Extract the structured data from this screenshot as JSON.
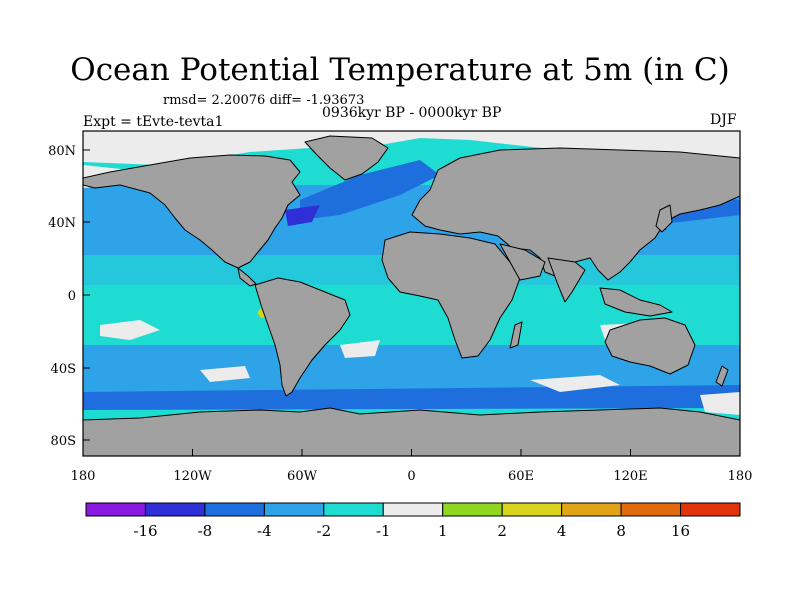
{
  "figure": {
    "title": "Ocean Potential Temperature at 5m (in C)",
    "stats": "rmsd= 2.20076 diff= -1.93673",
    "period": "0936kyr BP - 0000kyr BP",
    "experiment": "Expt = tEvte-tevta1",
    "season": "DJF"
  },
  "axes": {
    "lon_ticks": [
      "180",
      "120W",
      "60W",
      "0",
      "60E",
      "120E",
      "180"
    ],
    "lat_ticks": [
      "80N",
      "40N",
      "0",
      "40S",
      "80S"
    ]
  },
  "colorbar": {
    "colors": [
      "#8a19e0",
      "#2f2fd8",
      "#1f6ede",
      "#2ea3e8",
      "#1fdcd3",
      "#ececec",
      "#8fd61e",
      "#d8d41c",
      "#e0a414",
      "#e06a0c",
      "#e0340a"
    ],
    "labels": [
      "-16",
      "-8",
      "-4",
      "-2",
      "-1",
      "1",
      "2",
      "4",
      "8",
      "16"
    ]
  },
  "palette": {
    "land": "#a1a1a1",
    "ice": "#ececec",
    "ocean_light": "#1fdcd3",
    "ocean_mid": "#2ea3e8",
    "ocean_dark": "#1f6ede",
    "ocean_darkest": "#2f2fd8"
  }
}
